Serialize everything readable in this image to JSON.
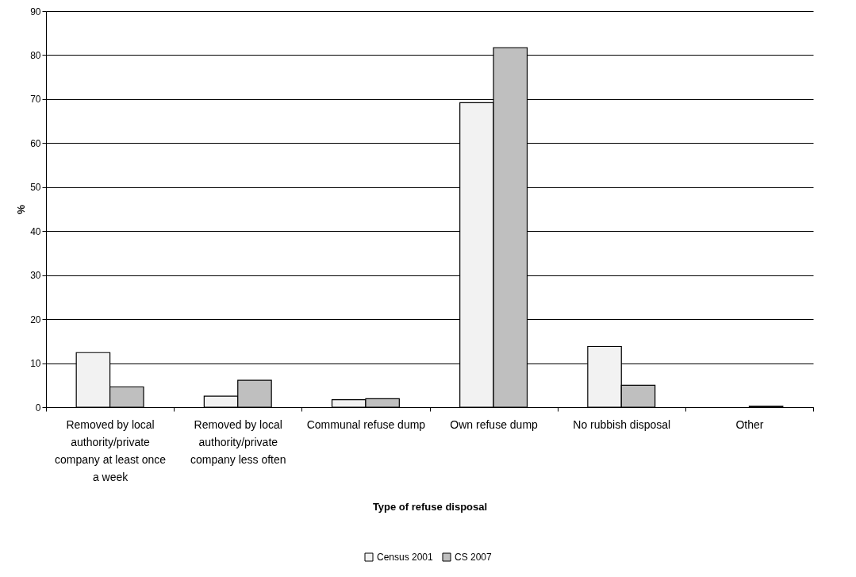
{
  "chart_data": {
    "type": "bar",
    "xlabel": "Type of refuse disposal",
    "ylabel": "%",
    "categories": [
      "Removed by local authority/private company at least once a week",
      "Removed by local authority/private company less often",
      "Communal refuse dump",
      "Own refuse dump",
      "No rubbish disposal",
      "Other"
    ],
    "series": [
      {
        "name": "Census 2001",
        "color": "#f2f2f2",
        "values": [
          12.4,
          2.5,
          1.7,
          69.2,
          13.8,
          null
        ]
      },
      {
        "name": "CS 2007",
        "color": "#bfbfbf",
        "values": [
          4.6,
          6.1,
          1.9,
          81.7,
          5.0,
          0.2
        ]
      }
    ],
    "ylim": [
      0,
      90
    ],
    "yticks": [
      0,
      10,
      20,
      30,
      40,
      50,
      60,
      70,
      80,
      90
    ],
    "grid": "y",
    "legend": "bottom"
  }
}
